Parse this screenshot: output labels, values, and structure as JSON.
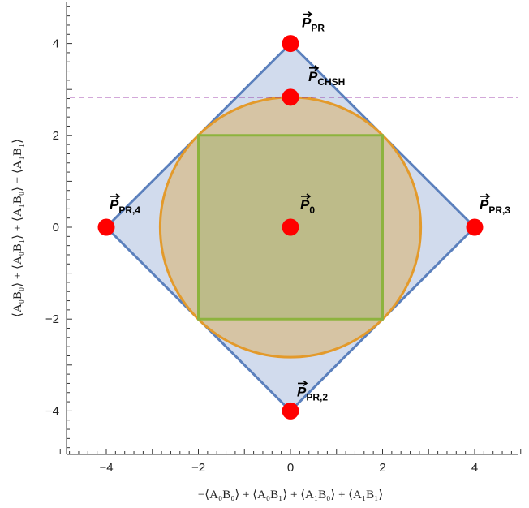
{
  "chart_data": {
    "type": "scatter",
    "title": "",
    "xlabel": "−⟨A₀B₀⟩ + ⟨A₀B₁⟩ + ⟨A₁B₀⟩ + ⟨A₁B₁⟩",
    "ylabel": "⟨A₀B₀⟩ + ⟨A₀B₁⟩ + ⟨A₁B₀⟩ − ⟨A₁B₁⟩",
    "xlim": [
      -5,
      5
    ],
    "ylim": [
      -5,
      5
    ],
    "xticks": [
      -4,
      -2,
      0,
      2,
      4
    ],
    "yticks": [
      -4,
      -2,
      0,
      2,
      4
    ],
    "xtick_labels": [
      "−4",
      "−2",
      "0",
      "2",
      "4"
    ],
    "ytick_labels": [
      "−4",
      "−2",
      "0",
      "2",
      "4"
    ],
    "grid": false,
    "regions": [
      {
        "shape": "polygon",
        "vertices": [
          [
            0,
            4
          ],
          [
            4,
            0
          ],
          [
            0,
            -4
          ],
          [
            -4,
            0
          ]
        ],
        "fill": "#c9d5ea",
        "stroke": "#5b80bd"
      },
      {
        "shape": "circle",
        "center": [
          0,
          0
        ],
        "radius": 2.83,
        "fill": "#d7bf96",
        "stroke": "#e39a2b"
      },
      {
        "shape": "polygon",
        "vertices": [
          [
            -2,
            2
          ],
          [
            2,
            2
          ],
          [
            2,
            -2
          ],
          [
            -2,
            -2
          ]
        ],
        "fill": "#b9ba85",
        "stroke": "#8db33e"
      }
    ],
    "reference_lines": [
      {
        "orientation": "horizontal",
        "y": 2.83,
        "color": "#8b1a9a",
        "style": "dashed"
      }
    ],
    "points": [
      {
        "x": 0,
        "y": 4,
        "label_main": "P",
        "label_sub": "PR"
      },
      {
        "x": 0,
        "y": 2.83,
        "label_main": "P",
        "label_sub": "CHSH"
      },
      {
        "x": -4,
        "y": 0,
        "label_main": "P",
        "label_sub": "PR,4"
      },
      {
        "x": 0,
        "y": 0,
        "label_main": "P",
        "label_sub": "0"
      },
      {
        "x": 4,
        "y": 0,
        "label_main": "P",
        "label_sub": "PR,3"
      },
      {
        "x": 0,
        "y": -4,
        "label_main": "P",
        "label_sub": "PR,2"
      }
    ],
    "point_color": "#ff0000"
  }
}
